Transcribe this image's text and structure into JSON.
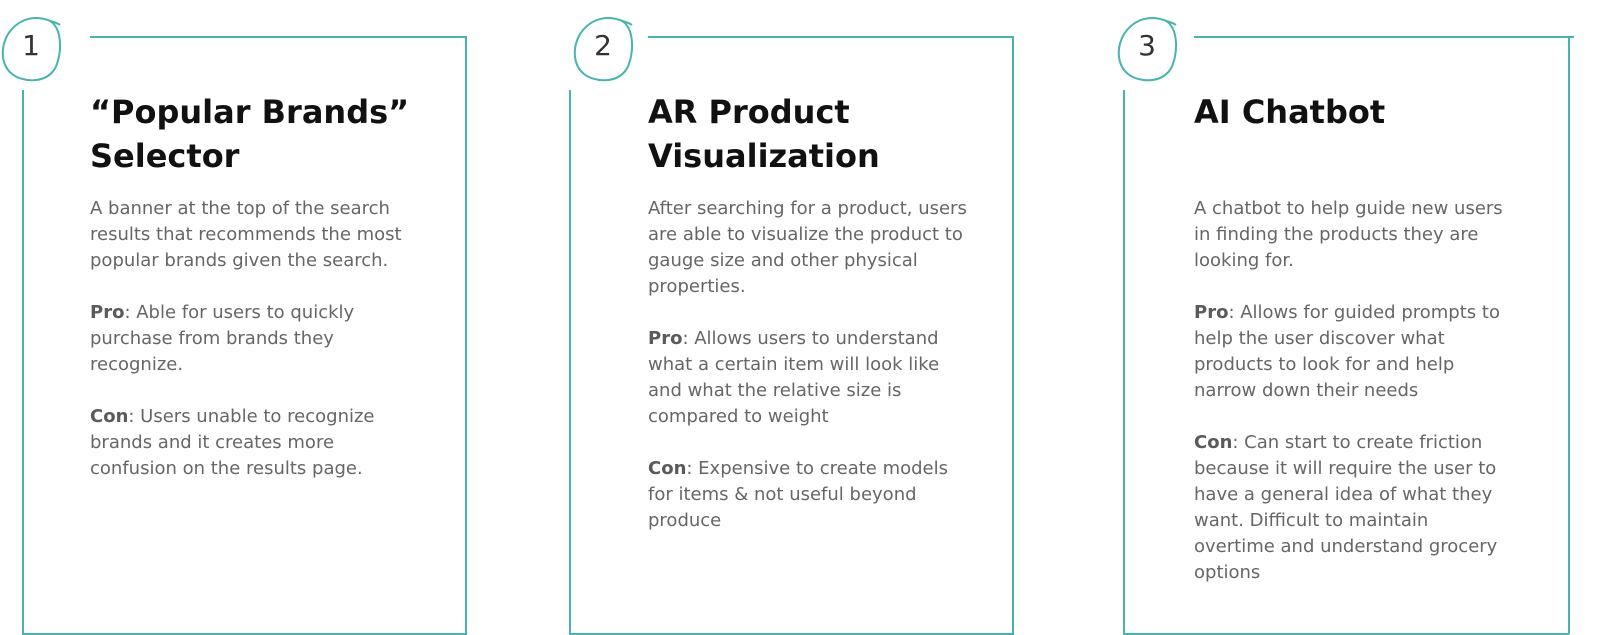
{
  "theme": {
    "accent_color": "#49b3b0",
    "title_color": "#111111",
    "body_color": "#666666"
  },
  "cards": [
    {
      "number": "1",
      "title": "“Popular Brands” Selector",
      "description": "A banner at the top of the search results that recommends the most popular brands given the search.",
      "pro_label": "Pro",
      "pro_text": ": Able for users to quickly purchase from brands they recognize.",
      "con_label": "Con",
      "con_text": ": Users unable to recognize brands and it creates more confusion on the results page."
    },
    {
      "number": "2",
      "title": "AR Product Visualization",
      "description": "After searching for a product, users are able to visualize the product to gauge size and other physical properties.",
      "pro_label": "Pro",
      "pro_text": ": Allows users to understand what a certain item will look like and what the relative size is compared to weight",
      "con_label": "Con",
      "con_text": ": Expensive to create models for items & not useful beyond produce"
    },
    {
      "number": "3",
      "title": "AI Chatbot",
      "description": "A chatbot to help guide new users in finding the products they are looking for.",
      "pro_label": "Pro",
      "pro_text": ": Allows for guided prompts to help the user discover what products to look for and help narrow down their needs",
      "con_label": "Con",
      "con_text": ": Can start to create friction because it will require the user to have a general idea of what they want. Difficult to maintain overtime and understand grocery options"
    }
  ]
}
